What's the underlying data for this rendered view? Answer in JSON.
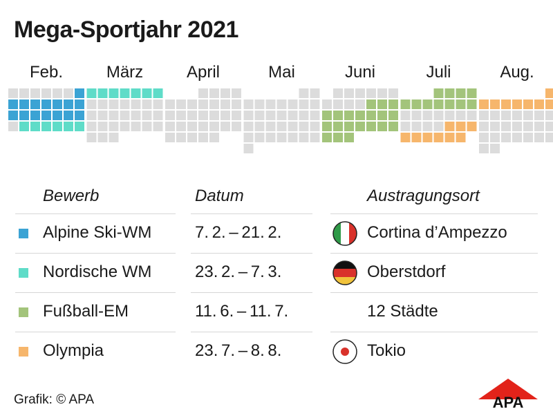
{
  "title": "Mega-Sportjahr 2021",
  "colors": {
    "ski_wm": "#3ba3d4",
    "nordic_wm": "#5fdcc8",
    "em": "#a3c47b",
    "olympia": "#f6b66c",
    "empty": "#dcdcdc",
    "italy": [
      "#2f9a48",
      "#ffffff",
      "#d9322b"
    ],
    "germany": [
      "#111111",
      "#d9322b",
      "#f1c33c"
    ],
    "japan_dot": "#d9322b",
    "logo_red": "#e2231a"
  },
  "chart_data": {
    "type": "table",
    "subtype": "calendar-grid",
    "year": 2021,
    "months": [
      {
        "label": "Feb.",
        "days": 28,
        "first_weekday": 0
      },
      {
        "label": "März",
        "days": 31,
        "first_weekday": 0
      },
      {
        "label": "April",
        "days": 30,
        "first_weekday": 3
      },
      {
        "label": "Mai",
        "days": 31,
        "first_weekday": 5
      },
      {
        "label": "Juni",
        "days": 30,
        "first_weekday": 1
      },
      {
        "label": "Juli",
        "days": 31,
        "first_weekday": 3
      },
      {
        "label": "Aug.",
        "days": 31,
        "first_weekday": 6
      }
    ],
    "columns": [
      "Bewerb",
      "Datum",
      "Austragungsort"
    ],
    "events": [
      {
        "name": "Alpine Ski-WM",
        "dates": "7. 2. – 21. 2.",
        "venue": "Cortina d’Ampezzo",
        "flag": "italy-flag-icon",
        "color_key": "ski_wm",
        "start": "2021-02-07",
        "end": "2021-02-21"
      },
      {
        "name": "Nordische WM",
        "dates": "23. 2. – 7. 3.",
        "venue": "Oberstdorf",
        "flag": "germany-flag-icon",
        "color_key": "nordic_wm",
        "start": "2021-02-23",
        "end": "2021-03-07"
      },
      {
        "name": "Fußball-EM",
        "dates": "11. 6. – 11. 7.",
        "venue": "12 Städte",
        "flag": "",
        "color_key": "em",
        "start": "2021-06-11",
        "end": "2021-07-11"
      },
      {
        "name": "Olympia",
        "dates": "23. 7. – 8. 8.",
        "venue": "Tokio",
        "flag": "japan-flag-icon",
        "color_key": "olympia",
        "start": "2021-07-23",
        "end": "2021-08-08"
      }
    ]
  },
  "credit": "Grafik: © APA",
  "logo_text": "APA"
}
